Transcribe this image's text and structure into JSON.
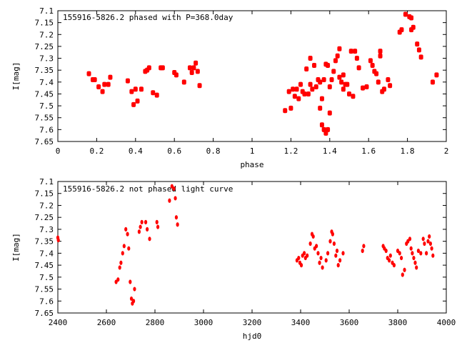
{
  "chart_data": [
    {
      "type": "scatter",
      "title": "155916-5826.2 phased with P=368.0day",
      "xlabel": "phase",
      "ylabel": "I[mag]",
      "xlim": [
        0,
        2
      ],
      "ylim": [
        7.65,
        7.1
      ],
      "y_inverted": true,
      "grid": false,
      "x_ticks": [
        "0",
        "0.2",
        "0.4",
        "0.6",
        "0.8",
        "1",
        "1.2",
        "1.4",
        "1.6",
        "1.8",
        "2"
      ],
      "y_ticks": [
        "7.1",
        "7.15",
        "7.2",
        "7.25",
        "7.3",
        "7.35",
        "7.4",
        "7.45",
        "7.5",
        "7.55",
        "7.6",
        "7.65"
      ],
      "color": "#ff0000",
      "points": [
        [
          0.16,
          7.365
        ],
        [
          0.18,
          7.39
        ],
        [
          0.19,
          7.39
        ],
        [
          0.21,
          7.42
        ],
        [
          0.23,
          7.44
        ],
        [
          0.24,
          7.41
        ],
        [
          0.26,
          7.41
        ],
        [
          0.27,
          7.38
        ],
        [
          0.36,
          7.395
        ],
        [
          0.38,
          7.44
        ],
        [
          0.39,
          7.495
        ],
        [
          0.4,
          7.43
        ],
        [
          0.41,
          7.48
        ],
        [
          0.43,
          7.43
        ],
        [
          0.45,
          7.355
        ],
        [
          0.46,
          7.35
        ],
        [
          0.47,
          7.34
        ],
        [
          0.49,
          7.445
        ],
        [
          0.51,
          7.455
        ],
        [
          0.53,
          7.34
        ],
        [
          0.54,
          7.34
        ],
        [
          0.6,
          7.36
        ],
        [
          0.61,
          7.37
        ],
        [
          0.65,
          7.4
        ],
        [
          0.68,
          7.34
        ],
        [
          0.69,
          7.36
        ],
        [
          0.7,
          7.34
        ],
        [
          0.71,
          7.32
        ],
        [
          0.72,
          7.355
        ],
        [
          0.73,
          7.415
        ],
        [
          1.17,
          7.52
        ],
        [
          1.19,
          7.44
        ],
        [
          1.2,
          7.51
        ],
        [
          1.21,
          7.43
        ],
        [
          1.22,
          7.46
        ],
        [
          1.23,
          7.43
        ],
        [
          1.24,
          7.47
        ],
        [
          1.25,
          7.41
        ],
        [
          1.26,
          7.44
        ],
        [
          1.27,
          7.45
        ],
        [
          1.28,
          7.345
        ],
        [
          1.29,
          7.45
        ],
        [
          1.3,
          7.3
        ],
        [
          1.3,
          7.41
        ],
        [
          1.31,
          7.43
        ],
        [
          1.32,
          7.33
        ],
        [
          1.33,
          7.42
        ],
        [
          1.34,
          7.39
        ],
        [
          1.35,
          7.51
        ],
        [
          1.35,
          7.4
        ],
        [
          1.36,
          7.58
        ],
        [
          1.36,
          7.47
        ],
        [
          1.37,
          7.6
        ],
        [
          1.37,
          7.39
        ],
        [
          1.38,
          7.615
        ],
        [
          1.38,
          7.325
        ],
        [
          1.39,
          7.6
        ],
        [
          1.39,
          7.33
        ],
        [
          1.4,
          7.53
        ],
        [
          1.4,
          7.42
        ],
        [
          1.41,
          7.39
        ],
        [
          1.42,
          7.355
        ],
        [
          1.43,
          7.31
        ],
        [
          1.44,
          7.29
        ],
        [
          1.45,
          7.38
        ],
        [
          1.45,
          7.26
        ],
        [
          1.46,
          7.4
        ],
        [
          1.47,
          7.43
        ],
        [
          1.47,
          7.37
        ],
        [
          1.48,
          7.41
        ],
        [
          1.49,
          7.41
        ],
        [
          1.5,
          7.45
        ],
        [
          1.51,
          7.27
        ],
        [
          1.52,
          7.46
        ],
        [
          1.53,
          7.27
        ],
        [
          1.54,
          7.3
        ],
        [
          1.55,
          7.34
        ],
        [
          1.57,
          7.425
        ],
        [
          1.59,
          7.42
        ],
        [
          1.61,
          7.31
        ],
        [
          1.62,
          7.33
        ],
        [
          1.63,
          7.355
        ],
        [
          1.64,
          7.365
        ],
        [
          1.65,
          7.4
        ],
        [
          1.66,
          7.29
        ],
        [
          1.66,
          7.27
        ],
        [
          1.67,
          7.44
        ],
        [
          1.68,
          7.43
        ],
        [
          1.7,
          7.39
        ],
        [
          1.71,
          7.415
        ],
        [
          1.76,
          7.19
        ],
        [
          1.77,
          7.18
        ],
        [
          1.79,
          7.115
        ],
        [
          1.81,
          7.125
        ],
        [
          1.82,
          7.13
        ],
        [
          1.82,
          7.18
        ],
        [
          1.83,
          7.17
        ],
        [
          1.85,
          7.24
        ],
        [
          1.86,
          7.265
        ],
        [
          1.87,
          7.295
        ],
        [
          1.93,
          7.4
        ],
        [
          1.95,
          7.37
        ]
      ]
    },
    {
      "type": "scatter",
      "title": "155916-5826.2 not phased light curve",
      "xlabel": "hjd0",
      "ylabel": "I[mag]",
      "xlim": [
        2400,
        4000
      ],
      "ylim": [
        7.65,
        7.1
      ],
      "y_inverted": true,
      "grid": false,
      "x_ticks": [
        "2400",
        "2600",
        "2800",
        "3000",
        "3200",
        "3400",
        "3600",
        "3800",
        "4000"
      ],
      "y_ticks": [
        "7.1",
        "7.15",
        "7.2",
        "7.25",
        "7.3",
        "7.35",
        "7.4",
        "7.45",
        "7.5",
        "7.55",
        "7.6",
        "7.65"
      ],
      "color": "#ff0000",
      "points": [
        [
          2400,
          7.335
        ],
        [
          2402,
          7.345
        ],
        [
          2640,
          7.52
        ],
        [
          2648,
          7.51
        ],
        [
          2655,
          7.46
        ],
        [
          2660,
          7.44
        ],
        [
          2667,
          7.4
        ],
        [
          2673,
          7.37
        ],
        [
          2680,
          7.3
        ],
        [
          2687,
          7.32
        ],
        [
          2692,
          7.38
        ],
        [
          2698,
          7.52
        ],
        [
          2703,
          7.59
        ],
        [
          2707,
          7.61
        ],
        [
          2712,
          7.6
        ],
        [
          2716,
          7.55
        ],
        [
          2735,
          7.31
        ],
        [
          2740,
          7.29
        ],
        [
          2746,
          7.27
        ],
        [
          2762,
          7.27
        ],
        [
          2768,
          7.3
        ],
        [
          2778,
          7.34
        ],
        [
          2808,
          7.27
        ],
        [
          2812,
          7.29
        ],
        [
          2860,
          7.18
        ],
        [
          2870,
          7.12
        ],
        [
          2878,
          7.13
        ],
        [
          2884,
          7.17
        ],
        [
          2888,
          7.25
        ],
        [
          2893,
          7.28
        ],
        [
          3385,
          7.43
        ],
        [
          3392,
          7.42
        ],
        [
          3397,
          7.44
        ],
        [
          3403,
          7.45
        ],
        [
          3408,
          7.41
        ],
        [
          3415,
          7.4
        ],
        [
          3420,
          7.42
        ],
        [
          3427,
          7.41
        ],
        [
          3440,
          7.36
        ],
        [
          3447,
          7.32
        ],
        [
          3452,
          7.33
        ],
        [
          3458,
          7.38
        ],
        [
          3465,
          7.37
        ],
        [
          3472,
          7.4
        ],
        [
          3478,
          7.44
        ],
        [
          3484,
          7.42
        ],
        [
          3490,
          7.46
        ],
        [
          3505,
          7.43
        ],
        [
          3512,
          7.4
        ],
        [
          3522,
          7.35
        ],
        [
          3528,
          7.31
        ],
        [
          3532,
          7.32
        ],
        [
          3538,
          7.36
        ],
        [
          3545,
          7.41
        ],
        [
          3550,
          7.39
        ],
        [
          3555,
          7.45
        ],
        [
          3562,
          7.43
        ],
        [
          3575,
          7.4
        ],
        [
          3655,
          7.39
        ],
        [
          3660,
          7.37
        ],
        [
          3740,
          7.37
        ],
        [
          3745,
          7.38
        ],
        [
          3752,
          7.39
        ],
        [
          3758,
          7.42
        ],
        [
          3765,
          7.43
        ],
        [
          3770,
          7.41
        ],
        [
          3778,
          7.44
        ],
        [
          3785,
          7.45
        ],
        [
          3800,
          7.39
        ],
        [
          3808,
          7.4
        ],
        [
          3815,
          7.42
        ],
        [
          3820,
          7.49
        ],
        [
          3828,
          7.47
        ],
        [
          3836,
          7.36
        ],
        [
          3842,
          7.35
        ],
        [
          3850,
          7.34
        ],
        [
          3855,
          7.38
        ],
        [
          3860,
          7.4
        ],
        [
          3866,
          7.42
        ],
        [
          3872,
          7.44
        ],
        [
          3877,
          7.46
        ],
        [
          3885,
          7.39
        ],
        [
          3895,
          7.4
        ],
        [
          3905,
          7.34
        ],
        [
          3910,
          7.36
        ],
        [
          3918,
          7.4
        ],
        [
          3925,
          7.35
        ],
        [
          3930,
          7.33
        ],
        [
          3935,
          7.36
        ],
        [
          3940,
          7.38
        ],
        [
          3945,
          7.41
        ]
      ]
    }
  ]
}
